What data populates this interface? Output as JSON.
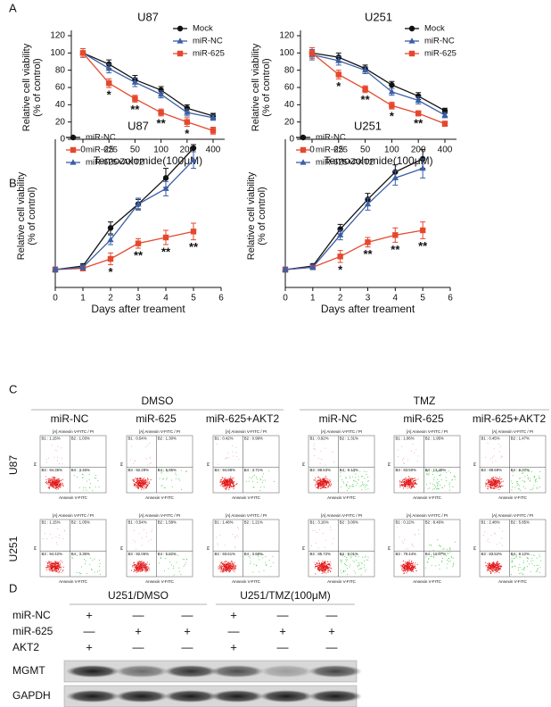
{
  "panel_labels": [
    "A",
    "B",
    "C",
    "D"
  ],
  "chart_data": [
    {
      "type": "line",
      "title": "U87",
      "xlabel": "Temozolomide(100μM)",
      "ylabel": [
        "Relative cell viability",
        "(% of control)"
      ],
      "categories": [
        "0",
        "25",
        "50",
        "100",
        "200",
        "400"
      ],
      "ylim": [
        0,
        120
      ],
      "yticks": [
        0,
        20,
        40,
        60,
        80,
        100,
        120
      ],
      "legend": "top-right",
      "series": [
        {
          "name": "Mock",
          "color": "#111111",
          "marker": "circle",
          "values": [
            100,
            87,
            69,
            57,
            36,
            27
          ],
          "errors": [
            5,
            5,
            5,
            4,
            4,
            3
          ]
        },
        {
          "name": "miR-NC",
          "color": "#3b5fa6",
          "marker": "triangle",
          "values": [
            100,
            82,
            66,
            52,
            31,
            25
          ],
          "errors": [
            5,
            5,
            5,
            4,
            4,
            3
          ]
        },
        {
          "name": "miR-625",
          "color": "#e5482d",
          "marker": "square",
          "values": [
            100,
            65,
            47,
            31,
            20,
            10
          ],
          "errors": [
            5,
            5,
            4,
            4,
            5,
            4
          ],
          "annotations": [
            null,
            "*",
            "**",
            "**",
            "*",
            null
          ]
        }
      ]
    },
    {
      "type": "line",
      "title": "U251",
      "xlabel": "Temozolomide(100μM)",
      "ylabel": [
        "Relative cell viability",
        "(% of control)"
      ],
      "categories": [
        "0",
        "25",
        "50",
        "100",
        "200",
        "400"
      ],
      "ylim": [
        0,
        120
      ],
      "yticks": [
        0,
        20,
        40,
        60,
        80,
        100,
        120
      ],
      "legend": "top-right",
      "series": [
        {
          "name": "Mock",
          "color": "#111111",
          "marker": "circle",
          "values": [
            100,
            95,
            82,
            63,
            50,
            33
          ],
          "errors": [
            6,
            5,
            4,
            4,
            4,
            3
          ]
        },
        {
          "name": "miR-NC",
          "color": "#3b5fa6",
          "marker": "triangle",
          "values": [
            98,
            91,
            80,
            55,
            45,
            28
          ],
          "errors": [
            6,
            5,
            4,
            4,
            4,
            3
          ]
        },
        {
          "name": "miR-625",
          "color": "#e5482d",
          "marker": "square",
          "values": [
            100,
            75,
            58,
            39,
            30,
            18
          ],
          "errors": [
            6,
            5,
            4,
            4,
            3,
            3
          ],
          "annotations": [
            null,
            "*",
            "**",
            "*",
            "**",
            null
          ]
        }
      ]
    },
    {
      "type": "line",
      "title": "U87",
      "xlabel": "Days after treament",
      "ylabel": [
        "Relative cell viability",
        "(% of control)"
      ],
      "x": [
        0,
        1,
        2,
        3,
        4,
        5
      ],
      "xlim": [
        0,
        6
      ],
      "xticks": [
        0,
        1,
        2,
        3,
        4,
        5,
        6
      ],
      "ylim": [
        0,
        1200
      ],
      "legend": "top-left",
      "series": [
        {
          "name": "miR-NC",
          "color": "#111111",
          "marker": "circle",
          "values": [
            150,
            180,
            500,
            700,
            920,
            1170
          ],
          "errors": [
            20,
            20,
            50,
            40,
            80,
            30
          ]
        },
        {
          "name": "miR-625",
          "color": "#e5482d",
          "marker": "square",
          "values": [
            150,
            160,
            240,
            370,
            420,
            470
          ],
          "errors": [
            20,
            20,
            50,
            40,
            60,
            70
          ],
          "annotations": [
            null,
            null,
            "*",
            "**",
            "**",
            "**"
          ]
        },
        {
          "name": "miR-625+AKT2",
          "color": "#3b5fa6",
          "marker": "triangle",
          "values": [
            150,
            170,
            400,
            700,
            830,
            1070
          ],
          "errors": [
            20,
            20,
            40,
            50,
            60,
            70
          ]
        }
      ]
    },
    {
      "type": "line",
      "title": "U251",
      "xlabel": "Days after treament",
      "ylabel": [
        "Relative cell viability",
        "(% of control)"
      ],
      "x": [
        0,
        1,
        2,
        3,
        4,
        5
      ],
      "xlim": [
        0,
        6
      ],
      "xticks": [
        0,
        1,
        2,
        3,
        4,
        5,
        6
      ],
      "ylim": [
        0,
        1200
      ],
      "legend": "top-left",
      "series": [
        {
          "name": "miR-NC",
          "color": "#111111",
          "marker": "circle",
          "values": [
            150,
            180,
            490,
            740,
            970,
            1080
          ],
          "errors": [
            20,
            20,
            40,
            50,
            60,
            80
          ]
        },
        {
          "name": "miR-625",
          "color": "#e5482d",
          "marker": "square",
          "values": [
            150,
            170,
            260,
            380,
            440,
            480
          ],
          "errors": [
            20,
            20,
            50,
            40,
            60,
            70
          ],
          "annotations": [
            null,
            null,
            "*",
            "**",
            "**",
            "**"
          ]
        },
        {
          "name": "miR-625+AKT2",
          "color": "#3b5fa6",
          "marker": "triangle",
          "values": [
            150,
            170,
            440,
            700,
            920,
            1000
          ],
          "errors": [
            20,
            20,
            40,
            50,
            60,
            80
          ]
        }
      ]
    }
  ],
  "flow": {
    "groups": [
      "DMSO",
      "TMZ"
    ],
    "columns": [
      "miR-NC",
      "miR-625",
      "miR-625+AKT2",
      "miR-NC",
      "miR-625",
      "miR-625+AKT2"
    ],
    "plot_title": "[A] Annexin V-FITC / PI",
    "x_label": "Annexin V-FITC",
    "y_label": "PI",
    "rows": [
      {
        "name": "U87",
        "plots": [
          [
            "B1 : 1.15%",
            "B2 : 1.03%",
            "B3 : 94.35%",
            "B4 : 3.46%"
          ],
          [
            "B1 : 0.54%",
            "B2 : 1.30%",
            "B3 : 92.29%",
            "B4 : 5.85%"
          ],
          [
            "B1 : 0.42%",
            "B2 : 0.99%",
            "B3 : 94.88%",
            "B4 : 3.71%"
          ],
          [
            "B1 : 0.92%",
            "B2 : 1.31%",
            "B3 : 88.63%",
            "B4 : 9.13%"
          ],
          [
            "B1 : 1.06%",
            "B2 : 1.95%",
            "B3 : 83.50%",
            "B4 : 13.48%"
          ],
          [
            "B1 : 0.45%",
            "B2 : 1.47%",
            "B3 : 88.69%",
            "B4 : 9.37%"
          ]
        ]
      },
      {
        "name": "U251",
        "plots": [
          [
            "B1 : 1.15%",
            "B2 : 1.05%",
            "B3 : 94.42%",
            "B4 : 3.35%"
          ],
          [
            "B1 : 0.54%",
            "B2 : 1.58%",
            "B3 : 92.06%",
            "B4 : 5.82%"
          ],
          [
            "B1 : 1.48%",
            "B2 : 1.21%",
            "B3 : 93.61%",
            "B4 : 3.68%"
          ],
          [
            "B1 : 3.16%",
            "B2 : 3.00%",
            "B3 : 85.72%",
            "B4 : 8.01%"
          ],
          [
            "B1 : 0.12%",
            "B2 : 8.46%",
            "B3 : 79.44%",
            "B4 : 11.97%"
          ],
          [
            "B1 : 2.48%",
            "B2 : 5.85%",
            "B3 : 83.52%",
            "B4 : 8.12%"
          ]
        ]
      }
    ]
  },
  "blot": {
    "groups": [
      "U251/DMSO",
      "U251/TMZ(100μM)"
    ],
    "rows": [
      {
        "name": "miR-NC",
        "signs": [
          "+",
          "—",
          "—",
          "+",
          "—",
          "—"
        ]
      },
      {
        "name": "miR-625",
        "signs": [
          "—",
          "+",
          "+",
          "—",
          "+",
          "+"
        ]
      },
      {
        "name": "AKT2",
        "signs": [
          "+",
          "—",
          "—",
          "+",
          "—",
          "—"
        ]
      }
    ],
    "bands": [
      "MGMT",
      "GAPDH"
    ]
  }
}
